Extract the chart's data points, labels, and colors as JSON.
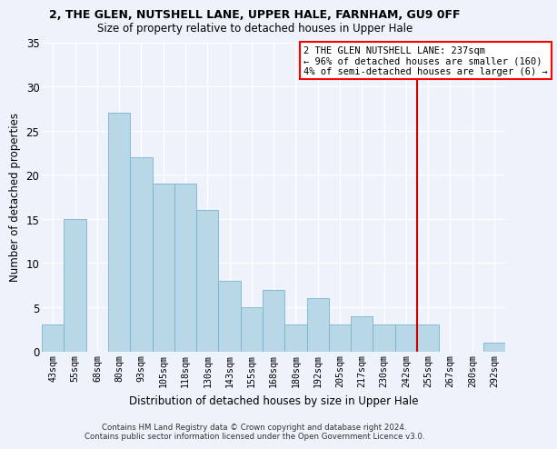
{
  "title1": "2, THE GLEN, NUTSHELL LANE, UPPER HALE, FARNHAM, GU9 0FF",
  "title2": "Size of property relative to detached houses in Upper Hale",
  "xlabel": "Distribution of detached houses by size in Upper Hale",
  "ylabel": "Number of detached properties",
  "bar_labels": [
    "43sqm",
    "55sqm",
    "68sqm",
    "80sqm",
    "93sqm",
    "105sqm",
    "118sqm",
    "130sqm",
    "143sqm",
    "155sqm",
    "168sqm",
    "180sqm",
    "192sqm",
    "205sqm",
    "217sqm",
    "230sqm",
    "242sqm",
    "255sqm",
    "267sqm",
    "280sqm",
    "292sqm"
  ],
  "bar_heights": [
    3,
    15,
    0,
    27,
    22,
    19,
    19,
    16,
    8,
    5,
    7,
    3,
    6,
    3,
    4,
    3,
    3,
    3,
    0,
    0,
    1
  ],
  "bar_color": "#b8d8e8",
  "bar_edge_color": "#7ab4cc",
  "ylim": [
    0,
    35
  ],
  "yticks": [
    0,
    5,
    10,
    15,
    20,
    25,
    30,
    35
  ],
  "vline_x_index": 16.5,
  "vline_color": "#cc0000",
  "ann_text_line1": "2 THE GLEN NUTSHELL LANE: 237sqm",
  "ann_text_line2": "← 96% of detached houses are smaller (160)",
  "ann_text_line3": "4% of semi-detached houses are larger (6) →",
  "footer_line1": "Contains HM Land Registry data © Crown copyright and database right 2024.",
  "footer_line2": "Contains public sector information licensed under the Open Government Licence v3.0.",
  "background_color": "#eef2fb",
  "grid_color": "#ffffff"
}
